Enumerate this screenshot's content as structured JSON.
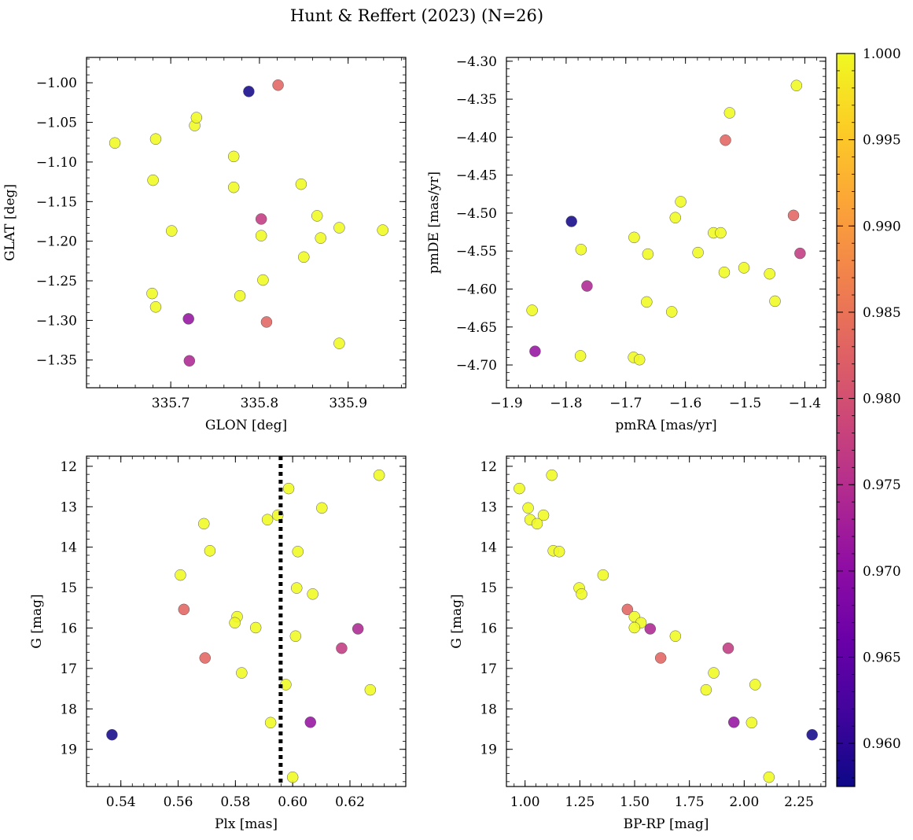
{
  "chart_data": {
    "title": "Hunt & Reffert (2023) (N=26)",
    "colorbar": {
      "range": [
        0.9575,
        1.0
      ],
      "ticks": [
        0.96,
        0.965,
        0.97,
        0.975,
        0.98,
        0.985,
        0.99,
        0.995,
        1.0
      ],
      "tick_labels": [
        "0.960",
        "0.965",
        "0.970",
        "0.975",
        "0.980",
        "0.985",
        "0.990",
        "0.995",
        "1.000"
      ],
      "colormap": "plasma"
    },
    "panels": [
      {
        "type": "scatter",
        "xlabel": "GLON [deg]",
        "ylabel": "GLAT [deg]",
        "xlim": [
          335.605,
          335.965
        ],
        "ylim": [
          -1.385,
          -0.968
        ],
        "y_inverted": false,
        "xticks": [
          335.7,
          335.8,
          335.9
        ],
        "xtick_labels": [
          "335.7",
          "335.8",
          "335.9"
        ],
        "yticks": [
          -1.35,
          -1.3,
          -1.25,
          -1.2,
          -1.15,
          -1.1,
          -1.05,
          -1.0
        ],
        "ytick_labels": [
          "−1.35",
          "−1.30",
          "−1.25",
          "−1.20",
          "−1.15",
          "−1.10",
          "−1.05",
          "−1.00"
        ],
        "points": [
          {
            "x": 335.637,
            "y": -1.076,
            "c": 1.0
          },
          {
            "x": 335.683,
            "y": -1.071,
            "c": 1.0
          },
          {
            "x": 335.68,
            "y": -1.123,
            "c": 1.0
          },
          {
            "x": 335.727,
            "y": -1.054,
            "c": 1.0
          },
          {
            "x": 335.729,
            "y": -1.044,
            "c": 1.0
          },
          {
            "x": 335.771,
            "y": -1.093,
            "c": 1.0
          },
          {
            "x": 335.771,
            "y": -1.132,
            "c": 1.0
          },
          {
            "x": 335.788,
            "y": -1.011,
            "c": 0.958
          },
          {
            "x": 335.821,
            "y": -1.003,
            "c": 0.983
          },
          {
            "x": 335.701,
            "y": -1.187,
            "c": 1.0
          },
          {
            "x": 335.802,
            "y": -1.172,
            "c": 0.977
          },
          {
            "x": 335.802,
            "y": -1.193,
            "c": 1.0
          },
          {
            "x": 335.847,
            "y": -1.128,
            "c": 1.0
          },
          {
            "x": 335.865,
            "y": -1.168,
            "c": 1.0
          },
          {
            "x": 335.869,
            "y": -1.196,
            "c": 1.0
          },
          {
            "x": 335.89,
            "y": -1.183,
            "c": 1.0
          },
          {
            "x": 335.939,
            "y": -1.186,
            "c": 1.0
          },
          {
            "x": 335.85,
            "y": -1.22,
            "c": 1.0
          },
          {
            "x": 335.804,
            "y": -1.249,
            "c": 1.0
          },
          {
            "x": 335.778,
            "y": -1.269,
            "c": 1.0
          },
          {
            "x": 335.679,
            "y": -1.266,
            "c": 1.0
          },
          {
            "x": 335.683,
            "y": -1.283,
            "c": 1.0
          },
          {
            "x": 335.72,
            "y": -1.298,
            "c": 0.971
          },
          {
            "x": 335.808,
            "y": -1.302,
            "c": 0.983
          },
          {
            "x": 335.89,
            "y": -1.329,
            "c": 1.0
          },
          {
            "x": 335.721,
            "y": -1.351,
            "c": 0.974
          }
        ]
      },
      {
        "type": "scatter",
        "xlabel": "pmRA [mas/yr]",
        "ylabel": "pmDE [mas/yr]",
        "xlim": [
          -1.9,
          -1.365
        ],
        "ylim": [
          -4.73,
          -4.295
        ],
        "y_inverted": false,
        "xticks": [
          -1.9,
          -1.8,
          -1.7,
          -1.6,
          -1.5,
          -1.4
        ],
        "xtick_labels": [
          "−1.9",
          "−1.8",
          "−1.7",
          "−1.6",
          "−1.5",
          "−1.4"
        ],
        "yticks": [
          -4.7,
          -4.65,
          -4.6,
          -4.55,
          -4.5,
          -4.45,
          -4.4,
          -4.35,
          -4.3
        ],
        "ytick_labels": [
          "−4.70",
          "−4.65",
          "−4.60",
          "−4.55",
          "−4.50",
          "−4.45",
          "−4.40",
          "−4.35",
          "−4.30"
        ],
        "points": [
          {
            "x": -1.414,
            "y": -4.332,
            "c": 1.0
          },
          {
            "x": -1.526,
            "y": -4.368,
            "c": 1.0
          },
          {
            "x": -1.533,
            "y": -4.404,
            "c": 0.983
          },
          {
            "x": -1.608,
            "y": -4.485,
            "c": 1.0
          },
          {
            "x": -1.617,
            "y": -4.506,
            "c": 1.0
          },
          {
            "x": -1.419,
            "y": -4.503,
            "c": 0.983
          },
          {
            "x": -1.791,
            "y": -4.511,
            "c": 0.958
          },
          {
            "x": -1.553,
            "y": -4.526,
            "c": 1.0
          },
          {
            "x": -1.541,
            "y": -4.526,
            "c": 1.0
          },
          {
            "x": -1.686,
            "y": -4.532,
            "c": 1.0
          },
          {
            "x": -1.775,
            "y": -4.548,
            "c": 1.0
          },
          {
            "x": -1.663,
            "y": -4.554,
            "c": 1.0
          },
          {
            "x": -1.579,
            "y": -4.552,
            "c": 1.0
          },
          {
            "x": -1.408,
            "y": -4.553,
            "c": 0.977
          },
          {
            "x": -1.502,
            "y": -4.572,
            "c": 1.0
          },
          {
            "x": -1.535,
            "y": -4.578,
            "c": 1.0
          },
          {
            "x": -1.459,
            "y": -4.58,
            "c": 1.0
          },
          {
            "x": -1.765,
            "y": -4.596,
            "c": 0.974
          },
          {
            "x": -1.45,
            "y": -4.616,
            "c": 1.0
          },
          {
            "x": -1.665,
            "y": -4.617,
            "c": 1.0
          },
          {
            "x": -1.857,
            "y": -4.628,
            "c": 1.0
          },
          {
            "x": -1.623,
            "y": -4.63,
            "c": 1.0
          },
          {
            "x": -1.852,
            "y": -4.682,
            "c": 0.971
          },
          {
            "x": -1.776,
            "y": -4.688,
            "c": 1.0
          },
          {
            "x": -1.687,
            "y": -4.69,
            "c": 1.0
          },
          {
            "x": -1.677,
            "y": -4.693,
            "c": 1.0
          }
        ]
      },
      {
        "type": "scatter",
        "xlabel": "Plx [mas]",
        "ylabel": "G [mag]",
        "xlim": [
          0.528,
          0.6395
        ],
        "ylim": [
          11.75,
          19.92
        ],
        "y_inverted": true,
        "xticks": [
          0.54,
          0.56,
          0.58,
          0.6,
          0.62
        ],
        "xtick_labels": [
          "0.54",
          "0.56",
          "0.58",
          "0.60",
          "0.62"
        ],
        "yticks": [
          12,
          13,
          14,
          15,
          16,
          17,
          18,
          19
        ],
        "ytick_labels": [
          "12",
          "13",
          "14",
          "15",
          "16",
          "17",
          "18",
          "19"
        ],
        "vline": {
          "x": 0.5958
        },
        "points": [
          {
            "x": 0.6302,
            "y": 12.22,
            "c": 1.0
          },
          {
            "x": 0.5986,
            "y": 12.55,
            "c": 1.0
          },
          {
            "x": 0.6102,
            "y": 13.03,
            "c": 1.0
          },
          {
            "x": 0.5948,
            "y": 13.21,
            "c": 1.0
          },
          {
            "x": 0.5912,
            "y": 13.32,
            "c": 1.0
          },
          {
            "x": 0.569,
            "y": 13.42,
            "c": 1.0
          },
          {
            "x": 0.5711,
            "y": 14.09,
            "c": 1.0
          },
          {
            "x": 0.6018,
            "y": 14.11,
            "c": 1.0
          },
          {
            "x": 0.5608,
            "y": 14.69,
            "c": 1.0
          },
          {
            "x": 0.6014,
            "y": 15.01,
            "c": 1.0
          },
          {
            "x": 0.607,
            "y": 15.16,
            "c": 1.0
          },
          {
            "x": 0.562,
            "y": 15.54,
            "c": 0.983
          },
          {
            "x": 0.5806,
            "y": 15.72,
            "c": 1.0
          },
          {
            "x": 0.5798,
            "y": 15.87,
            "c": 1.0
          },
          {
            "x": 0.5871,
            "y": 15.99,
            "c": 1.0
          },
          {
            "x": 0.6228,
            "y": 16.02,
            "c": 0.974
          },
          {
            "x": 0.601,
            "y": 16.2,
            "c": 1.0
          },
          {
            "x": 0.6171,
            "y": 16.5,
            "c": 0.977
          },
          {
            "x": 0.5694,
            "y": 16.74,
            "c": 0.983
          },
          {
            "x": 0.5822,
            "y": 17.11,
            "c": 1.0
          },
          {
            "x": 0.5976,
            "y": 17.4,
            "c": 1.0
          },
          {
            "x": 0.6271,
            "y": 17.53,
            "c": 1.0
          },
          {
            "x": 0.5923,
            "y": 18.34,
            "c": 1.0
          },
          {
            "x": 0.6062,
            "y": 18.33,
            "c": 0.971
          },
          {
            "x": 0.5369,
            "y": 18.64,
            "c": 0.958
          },
          {
            "x": 0.6,
            "y": 19.69,
            "c": 1.0
          }
        ]
      },
      {
        "type": "scatter",
        "xlabel": "BP-RP [mag]",
        "ylabel": "G [mag]",
        "xlim": [
          0.915,
          2.372
        ],
        "ylim": [
          11.75,
          19.92
        ],
        "y_inverted": true,
        "xticks": [
          1.0,
          1.25,
          1.5,
          1.75,
          2.0,
          2.25
        ],
        "xtick_labels": [
          "1.00",
          "1.25",
          "1.50",
          "1.75",
          "2.00",
          "2.25"
        ],
        "yticks": [
          12,
          13,
          14,
          15,
          16,
          17,
          18,
          19
        ],
        "ytick_labels": [
          "12",
          "13",
          "14",
          "15",
          "16",
          "17",
          "18",
          "19"
        ],
        "points": [
          {
            "x": 1.122,
            "y": 12.22,
            "c": 1.0
          },
          {
            "x": 0.974,
            "y": 12.55,
            "c": 1.0
          },
          {
            "x": 1.014,
            "y": 13.03,
            "c": 1.0
          },
          {
            "x": 1.084,
            "y": 13.21,
            "c": 1.0
          },
          {
            "x": 1.023,
            "y": 13.32,
            "c": 1.0
          },
          {
            "x": 1.055,
            "y": 13.42,
            "c": 1.0
          },
          {
            "x": 1.129,
            "y": 14.09,
            "c": 1.0
          },
          {
            "x": 1.156,
            "y": 14.11,
            "c": 1.0
          },
          {
            "x": 1.356,
            "y": 14.69,
            "c": 1.0
          },
          {
            "x": 1.247,
            "y": 15.01,
            "c": 1.0
          },
          {
            "x": 1.258,
            "y": 15.16,
            "c": 1.0
          },
          {
            "x": 1.467,
            "y": 15.54,
            "c": 0.983
          },
          {
            "x": 1.499,
            "y": 15.72,
            "c": 1.0
          },
          {
            "x": 1.529,
            "y": 15.87,
            "c": 1.0
          },
          {
            "x": 1.499,
            "y": 15.99,
            "c": 1.0
          },
          {
            "x": 1.571,
            "y": 16.02,
            "c": 0.974
          },
          {
            "x": 1.686,
            "y": 16.2,
            "c": 1.0
          },
          {
            "x": 1.927,
            "y": 16.5,
            "c": 0.977
          },
          {
            "x": 1.619,
            "y": 16.74,
            "c": 0.983
          },
          {
            "x": 1.861,
            "y": 17.11,
            "c": 1.0
          },
          {
            "x": 2.05,
            "y": 17.4,
            "c": 1.0
          },
          {
            "x": 1.826,
            "y": 17.53,
            "c": 1.0
          },
          {
            "x": 2.034,
            "y": 18.34,
            "c": 1.0
          },
          {
            "x": 1.953,
            "y": 18.33,
            "c": 0.971
          },
          {
            "x": 2.31,
            "y": 18.64,
            "c": 0.958
          },
          {
            "x": 2.113,
            "y": 19.69,
            "c": 1.0
          }
        ]
      }
    ]
  }
}
